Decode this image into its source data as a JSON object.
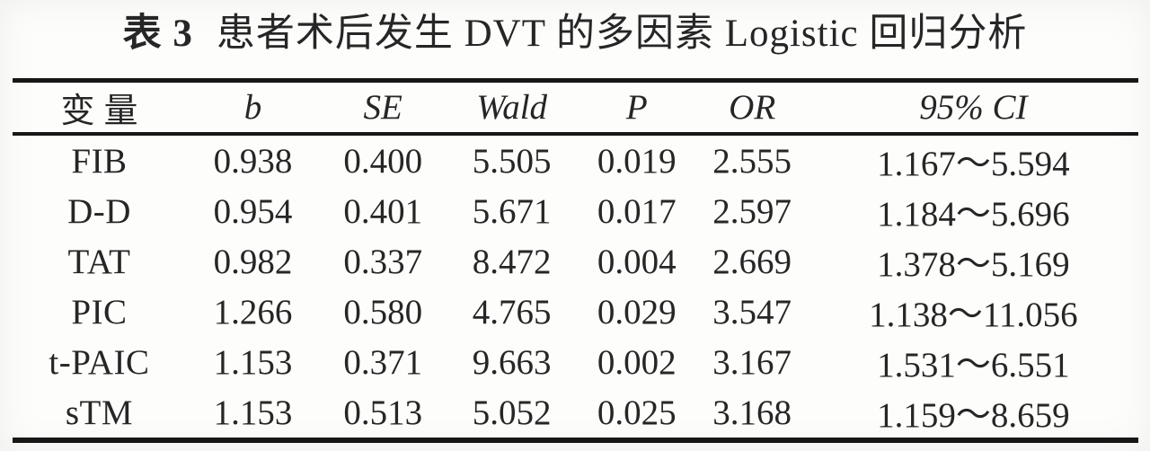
{
  "title": {
    "label": "表 3",
    "text": "患者术后发生 DVT 的多因素 Logistic 回归分析"
  },
  "table": {
    "columns": [
      "变量",
      "b",
      "SE",
      "Wald",
      "P",
      "OR",
      "95% CI"
    ],
    "rows": [
      {
        "variable": "FIB",
        "b": "0.938",
        "se": "0.400",
        "wald": "5.505",
        "p": "0.019",
        "or": "2.555",
        "ci": "1.167～5.594"
      },
      {
        "variable": "D-D",
        "b": "0.954",
        "se": "0.401",
        "wald": "5.671",
        "p": "0.017",
        "or": "2.597",
        "ci": "1.184～5.696"
      },
      {
        "variable": "TAT",
        "b": "0.982",
        "se": "0.337",
        "wald": "8.472",
        "p": "0.004",
        "or": "2.669",
        "ci": "1.378～5.169"
      },
      {
        "variable": "PIC",
        "b": "1.266",
        "se": "0.580",
        "wald": "4.765",
        "p": "0.029",
        "or": "3.547",
        "ci": "1.138～11.056"
      },
      {
        "variable": "t-PAIC",
        "b": "1.153",
        "se": "0.371",
        "wald": "9.663",
        "p": "0.002",
        "or": "3.167",
        "ci": "1.531～6.551"
      },
      {
        "variable": "sTM",
        "b": "1.153",
        "se": "0.513",
        "wald": "5.052",
        "p": "0.025",
        "or": "3.168",
        "ci": "1.159～8.659"
      }
    ]
  },
  "colors": {
    "text": "#262626",
    "rule": "#171717",
    "background": "#fdfdfc"
  }
}
